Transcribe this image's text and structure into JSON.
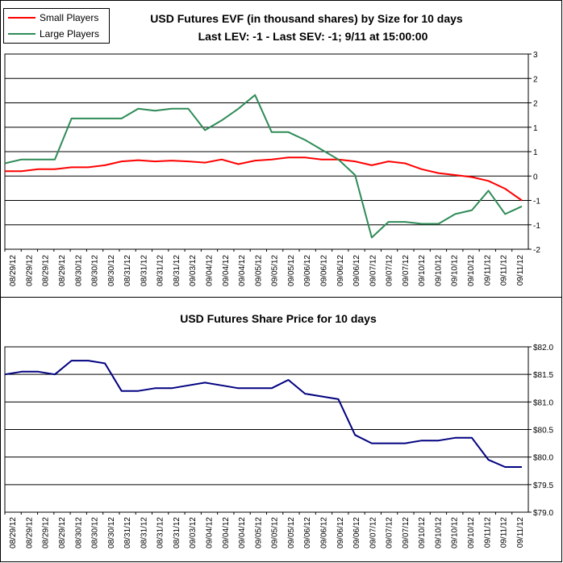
{
  "chart_data": [
    {
      "type": "line",
      "title": "USD Futures EVF (in thousand shares) by Size for 10 days",
      "subtitle": "Last LEV: -1 - Last SEV: -1; 9/11 at 15:00:00",
      "legend_position": "top-left",
      "grid": true,
      "ylim": [
        -2,
        3
      ],
      "y_tick_labels": [
        "3",
        "2",
        "2",
        "1",
        "1",
        "0",
        "-1",
        "-1",
        "-2"
      ],
      "x_tick_labels": [
        "08/29/12",
        "08/29/12",
        "08/29/12",
        "08/29/12",
        "08/30/12",
        "08/30/12",
        "08/30/12",
        "08/31/12",
        "08/31/12",
        "08/31/12",
        "08/31/12",
        "09/03/12",
        "09/04/12",
        "09/04/12",
        "09/04/12",
        "09/05/12",
        "09/05/12",
        "09/05/12",
        "09/06/12",
        "09/06/12",
        "09/06/12",
        "09/06/12",
        "09/07/12",
        "09/07/12",
        "09/07/12",
        "09/10/12",
        "09/10/12",
        "09/10/12",
        "09/10/12",
        "09/11/12",
        "09/11/12",
        "09/11/12"
      ],
      "series": [
        {
          "name": "Small Players",
          "color": "#ff0000",
          "values": [
            0.0,
            0.0,
            0.05,
            0.05,
            0.1,
            0.1,
            0.15,
            0.25,
            0.28,
            0.25,
            0.27,
            0.25,
            0.22,
            0.3,
            0.18,
            0.27,
            0.3,
            0.35,
            0.35,
            0.3,
            0.3,
            0.25,
            0.15,
            0.25,
            0.2,
            0.05,
            -0.05,
            -0.1,
            -0.15,
            -0.25,
            -0.45,
            -0.75
          ]
        },
        {
          "name": "Large Players",
          "color": "#2e8b57",
          "values": [
            0.2,
            0.3,
            0.3,
            0.3,
            1.35,
            1.35,
            1.35,
            1.35,
            1.6,
            1.55,
            1.6,
            1.6,
            1.05,
            1.3,
            1.6,
            1.95,
            1.0,
            1.0,
            0.8,
            0.55,
            0.3,
            -0.1,
            -1.7,
            -1.3,
            -1.3,
            -1.35,
            -1.35,
            -1.1,
            -1.0,
            -0.5,
            -1.1,
            -0.9
          ]
        }
      ]
    },
    {
      "type": "line",
      "title": "USD Futures Share Price for 10 days",
      "grid": true,
      "ylim": [
        79.0,
        82.0
      ],
      "y_tick_labels": [
        "$82.0",
        "$81.5",
        "$81.0",
        "$80.5",
        "$80.0",
        "$79.5",
        "$79.0"
      ],
      "x_tick_labels": [
        "08/29/12",
        "08/29/12",
        "08/29/12",
        "08/29/12",
        "08/30/12",
        "08/30/12",
        "08/30/12",
        "08/31/12",
        "08/31/12",
        "08/31/12",
        "08/31/12",
        "09/03/12",
        "09/04/12",
        "09/04/12",
        "09/04/12",
        "09/05/12",
        "09/05/12",
        "09/05/12",
        "09/06/12",
        "09/06/12",
        "09/06/12",
        "09/06/12",
        "09/07/12",
        "09/07/12",
        "09/07/12",
        "09/10/12",
        "09/10/12",
        "09/10/12",
        "09/10/12",
        "09/11/12",
        "09/11/12",
        "09/11/12"
      ],
      "series": [
        {
          "color": "#000080",
          "values": [
            81.5,
            81.55,
            81.55,
            81.5,
            81.75,
            81.75,
            81.7,
            81.2,
            81.2,
            81.25,
            81.25,
            81.3,
            81.35,
            81.3,
            81.25,
            81.25,
            81.25,
            81.4,
            81.15,
            81.1,
            81.05,
            80.4,
            80.25,
            80.25,
            80.25,
            80.3,
            80.3,
            80.35,
            80.35,
            79.95,
            79.82,
            79.82
          ]
        }
      ]
    }
  ]
}
